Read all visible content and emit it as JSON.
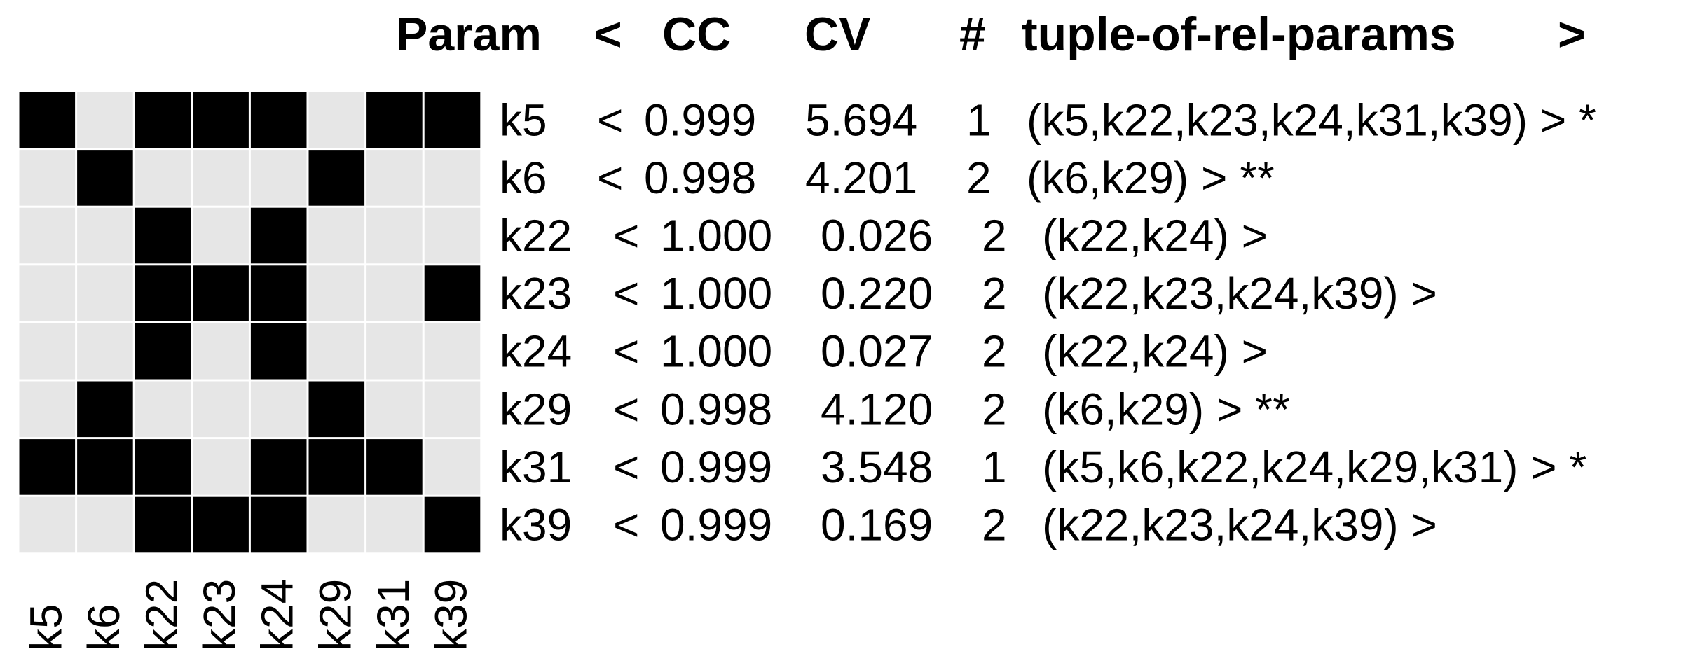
{
  "chart_data": {
    "type": "heatmap",
    "header": {
      "param": "Param",
      "lt": "<",
      "cc": "CC",
      "cv": "CV",
      "hash": "#",
      "tuple": "tuple-of-rel-params",
      "gt": ">"
    },
    "params": [
      "k5",
      "k6",
      "k22",
      "k23",
      "k24",
      "k29",
      "k31",
      "k39"
    ],
    "matrix": [
      [
        1,
        0,
        1,
        1,
        1,
        0,
        1,
        1
      ],
      [
        0,
        1,
        0,
        0,
        0,
        1,
        0,
        0
      ],
      [
        0,
        0,
        1,
        0,
        1,
        0,
        0,
        0
      ],
      [
        0,
        0,
        1,
        1,
        1,
        0,
        0,
        1
      ],
      [
        0,
        0,
        1,
        0,
        1,
        0,
        0,
        0
      ],
      [
        0,
        1,
        0,
        0,
        0,
        1,
        0,
        0
      ],
      [
        1,
        1,
        1,
        0,
        1,
        1,
        1,
        0
      ],
      [
        0,
        0,
        1,
        1,
        1,
        0,
        0,
        1
      ]
    ],
    "rows": [
      {
        "param": "k5",
        "cc": "0.999",
        "cv": "5.694",
        "n": "1",
        "tuple": "(k5,k22,k23,k24,k31,k39)",
        "mark": "*"
      },
      {
        "param": "k6",
        "cc": "0.998",
        "cv": "4.201",
        "n": "2",
        "tuple": "(k6,k29)",
        "mark": "**"
      },
      {
        "param": "k22",
        "cc": "1.000",
        "cv": "0.026",
        "n": "2",
        "tuple": "(k22,k24)",
        "mark": ""
      },
      {
        "param": "k23",
        "cc": "1.000",
        "cv": "0.220",
        "n": "2",
        "tuple": "(k22,k23,k24,k39)",
        "mark": ""
      },
      {
        "param": "k24",
        "cc": "1.000",
        "cv": "0.027",
        "n": "2",
        "tuple": "(k22,k24)",
        "mark": ""
      },
      {
        "param": "k29",
        "cc": "0.998",
        "cv": "4.120",
        "n": "2",
        "tuple": "(k6,k29)",
        "mark": "**"
      },
      {
        "param": "k31",
        "cc": "0.999",
        "cv": "3.548",
        "n": "1",
        "tuple": "(k5,k6,k22,k24,k29,k31)",
        "mark": "*"
      },
      {
        "param": "k39",
        "cc": "0.999",
        "cv": "0.169",
        "n": "2",
        "tuple": "(k22,k23,k24,k39)",
        "mark": ""
      }
    ],
    "colors": {
      "on": "#000000",
      "off": "#e6e6e6",
      "grid": "#ffffff"
    }
  }
}
